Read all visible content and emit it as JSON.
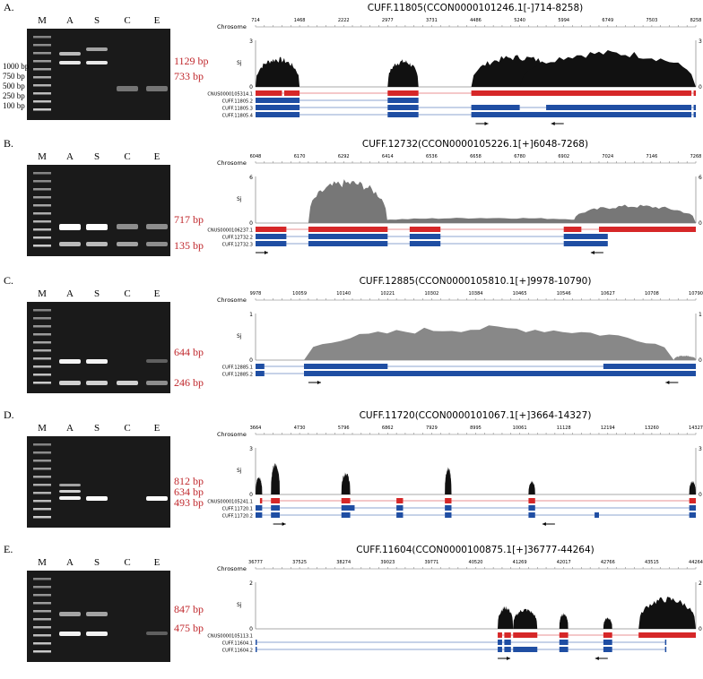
{
  "panels": [
    {
      "label": "A.",
      "lanes": [
        "M",
        "A",
        "S",
        "C",
        "E"
      ],
      "ladder": [
        "1000 bp",
        "750 bp",
        "500 bp",
        "250 bp",
        "100 bp"
      ],
      "bands": [
        "1129 bp",
        "733 bp"
      ],
      "track": {
        "title": "CUFF.11805(CCON0000101246.1[-]714-8258)",
        "axis_label": "Chrosome",
        "ticks": [
          "714",
          "1468",
          "2222",
          "2977",
          "3731",
          "4486",
          "5240",
          "5994",
          "6749",
          "7503",
          "8258"
        ],
        "y_label": "Sj",
        "y_max": "3",
        "y_min": "0",
        "transcripts": [
          "CNUS0000105314.1",
          "CUFF.11805.2",
          "CUFF.11805.3",
          "CUFF.11805.4"
        ]
      }
    },
    {
      "label": "B.",
      "lanes": [
        "M",
        "A",
        "S",
        "C",
        "E"
      ],
      "bands": [
        "717 bp",
        "135 bp"
      ],
      "track": {
        "title": "CUFF.12732(CCON0000105226.1[+]6048-7268)",
        "axis_label": "Chrosome",
        "ticks": [
          "6048",
          "6170",
          "6292",
          "6414",
          "6536",
          "6658",
          "6780",
          "6902",
          "7024",
          "7146",
          "7268"
        ],
        "y_label": "Sj",
        "y_max": "6",
        "y_min": "0",
        "transcripts": [
          "CNUS0000106237.1",
          "CUFF.12732.2",
          "CUFF.12732.3"
        ]
      }
    },
    {
      "label": "C.",
      "lanes": [
        "M",
        "A",
        "S",
        "C",
        "E"
      ],
      "bands": [
        "644 bp",
        "246 bp"
      ],
      "track": {
        "title": "CUFF.12885(CCON0000105810.1[+]9978-10790)",
        "axis_label": "Chrosome",
        "ticks": [
          "9978",
          "10059",
          "10140",
          "10221",
          "10302",
          "10384",
          "10465",
          "10546",
          "10627",
          "10708",
          "10790"
        ],
        "y_label": "Sj",
        "y_max": "1",
        "y_min": "0",
        "transcripts": [
          "CUFF.12885.1",
          "CUFF.12885.2"
        ]
      }
    },
    {
      "label": "D.",
      "lanes": [
        "M",
        "A",
        "S",
        "C",
        "E"
      ],
      "bands": [
        "812 bp",
        "634 bp",
        "493 bp"
      ],
      "track": {
        "title": "CUFF.11720(CCON0000101067.1[+]3664-14327)",
        "axis_label": "Chrosome",
        "ticks": [
          "3664",
          "4730",
          "5796",
          "6862",
          "7929",
          "8995",
          "10061",
          "11128",
          "12194",
          "13260",
          "14327"
        ],
        "y_label": "Sj",
        "y_max": "3",
        "y_min": "0",
        "transcripts": [
          "CNUS0000105241.1",
          "CUFF.11720.1",
          "CUFF.11720.2"
        ]
      }
    },
    {
      "label": "E.",
      "lanes": [
        "M",
        "A",
        "S",
        "C",
        "E"
      ],
      "bands": [
        "847 bp",
        "475 bp"
      ],
      "track": {
        "title": "CUFF.11604(CCON0000100875.1[+]36777-44264)",
        "axis_label": "Chrosome",
        "ticks": [
          "36777",
          "37525",
          "38274",
          "39023",
          "39771",
          "40520",
          "41269",
          "42017",
          "42766",
          "43515",
          "44264"
        ],
        "y_label": "Sj",
        "y_max": "2",
        "y_min": "0",
        "transcripts": [
          "CNUS0000105113.1",
          "CUFF.11604.1",
          "CUFF.11604.2"
        ]
      }
    }
  ]
}
